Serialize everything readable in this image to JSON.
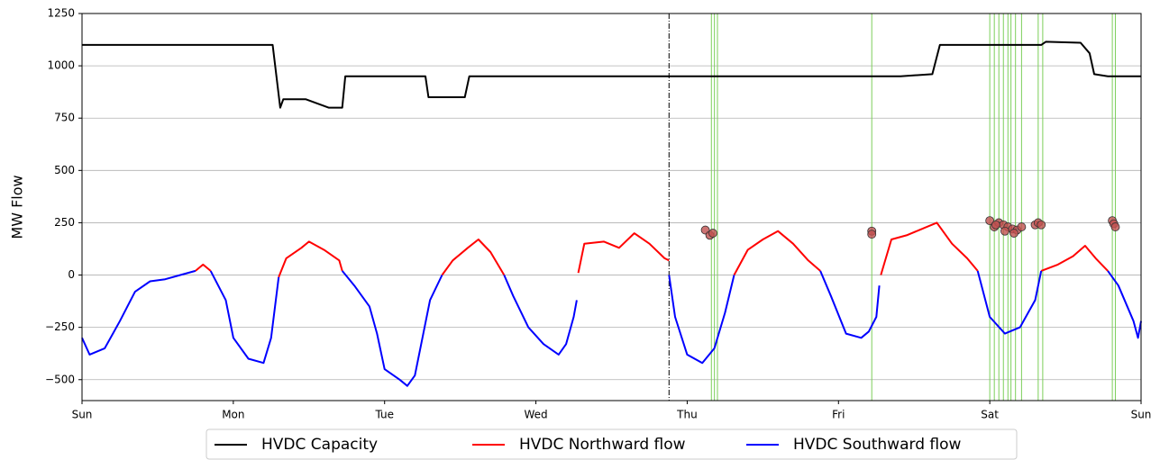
{
  "chart_data": {
    "type": "line",
    "ylabel": "MW Flow",
    "xlim": [
      0,
      7
    ],
    "ylim": [
      -600,
      1250
    ],
    "xticks": [
      {
        "value": 0,
        "label": "Sun"
      },
      {
        "value": 1,
        "label": "Mon"
      },
      {
        "value": 2,
        "label": "Tue"
      },
      {
        "value": 3,
        "label": "Wed"
      },
      {
        "value": 4,
        "label": "Thu"
      },
      {
        "value": 5,
        "label": "Fri"
      },
      {
        "value": 6,
        "label": "Sat"
      },
      {
        "value": 7,
        "label": "Sun"
      }
    ],
    "yticks": [
      {
        "value": -500,
        "label": "−500"
      },
      {
        "value": -250,
        "label": "−250"
      },
      0,
      250,
      500,
      750,
      1000,
      1250
    ],
    "grid": "y",
    "legend": "lower center",
    "series": [
      {
        "name": "HVDC Capacity",
        "color": "#000000",
        "x": [
          0,
          1.26,
          1.31,
          1.33,
          1.48,
          1.63,
          1.72,
          1.74,
          2.27,
          2.29,
          2.53,
          2.56,
          5.41,
          5.62,
          5.67,
          6.34,
          6.37,
          6.6,
          6.66,
          6.69,
          6.78,
          7
        ],
        "values": [
          1100,
          1100,
          800,
          840,
          840,
          800,
          800,
          950,
          950,
          850,
          850,
          950,
          950,
          960,
          1100,
          1100,
          1115,
          1110,
          1060,
          960,
          950,
          950
        ]
      },
      {
        "name": "HVDC Northward flow",
        "color": "#ff0000",
        "x": [
          0.75,
          0.8,
          0.85,
          1.0,
          1.3,
          1.35,
          1.45,
          1.5,
          1.6,
          1.7,
          1.72,
          2.0,
          2.38,
          2.45,
          2.55,
          2.62,
          2.7,
          2.79,
          3.0,
          3.28,
          3.32,
          3.45,
          3.55,
          3.65,
          3.75,
          3.85,
          3.88,
          4.0,
          4.31,
          4.4,
          4.5,
          4.6,
          4.7,
          4.8,
          4.88,
          5.0,
          5.28,
          5.35,
          5.45,
          5.55,
          5.65,
          5.75,
          5.85,
          5.92,
          6.1,
          6.34,
          6.45,
          6.55,
          6.63,
          6.7,
          6.78
        ],
        "values": [
          20,
          50,
          20,
          null,
          -10,
          80,
          130,
          160,
          120,
          70,
          20,
          null,
          0,
          70,
          130,
          170,
          110,
          0,
          null,
          10,
          150,
          160,
          130,
          200,
          150,
          80,
          70,
          null,
          0,
          120,
          170,
          210,
          150,
          70,
          20,
          null,
          0,
          170,
          190,
          220,
          250,
          150,
          80,
          20,
          null,
          20,
          50,
          90,
          140,
          80,
          20
        ]
      },
      {
        "name": "HVDC Southward flow",
        "color": "#0000ff",
        "x": [
          0,
          0.05,
          0.15,
          0.25,
          0.35,
          0.45,
          0.55,
          0.65,
          0.75,
          0.8,
          0.85,
          0.9,
          0.95,
          1.0,
          1.1,
          1.2,
          1.25,
          1.3,
          1.5,
          1.72,
          1.8,
          1.9,
          1.95,
          2.0,
          2.1,
          2.15,
          2.2,
          2.25,
          2.3,
          2.38,
          2.5,
          2.79,
          2.85,
          2.95,
          3.05,
          3.15,
          3.2,
          3.25,
          3.27,
          3.5,
          3.88,
          3.92,
          4.0,
          4.1,
          4.18,
          4.25,
          4.31,
          4.5,
          4.88,
          4.95,
          5.05,
          5.15,
          5.2,
          5.25,
          5.27,
          5.5,
          5.92,
          6.0,
          6.1,
          6.2,
          6.3,
          6.34,
          6.5,
          6.78,
          6.85,
          6.95,
          6.98,
          7.0
        ],
        "values": [
          -300,
          -380,
          -350,
          -220,
          -80,
          -30,
          -20,
          0,
          20,
          null,
          20,
          -50,
          -120,
          -300,
          -400,
          -420,
          -300,
          -10,
          null,
          20,
          -50,
          -150,
          -280,
          -450,
          -500,
          -530,
          -480,
          -300,
          -120,
          0,
          null,
          0,
          -100,
          -250,
          -330,
          -380,
          -330,
          -200,
          -120,
          null,
          0,
          -200,
          -380,
          -420,
          -350,
          -180,
          0,
          null,
          20,
          -100,
          -280,
          -300,
          -270,
          -200,
          -50,
          null,
          20,
          -200,
          -280,
          -250,
          -120,
          20,
          null,
          20,
          -50,
          -220,
          -300,
          -220
        ]
      }
    ],
    "markers": {
      "color": "#c05050",
      "x": [
        4.12,
        4.15,
        4.17,
        5.22,
        5.22,
        6.0,
        6.03,
        6.06,
        6.09,
        6.12,
        6.15,
        6.18,
        6.21,
        6.04,
        6.1,
        6.16,
        6.3,
        6.32,
        6.34,
        6.81,
        6.82,
        6.83
      ],
      "values": [
        215,
        190,
        200,
        210,
        195,
        260,
        230,
        250,
        240,
        230,
        220,
        215,
        230,
        240,
        210,
        200,
        240,
        250,
        240,
        260,
        245,
        230
      ]
    },
    "vlines": {
      "color": "#7ccf5a",
      "x": [
        4.16,
        4.18,
        4.2,
        5.22,
        6.0,
        6.03,
        6.06,
        6.09,
        6.12,
        6.14,
        6.17,
        6.21,
        6.32,
        6.35,
        6.81,
        6.83
      ]
    },
    "marker_line": {
      "x": 3.88,
      "color": "#000000"
    }
  }
}
